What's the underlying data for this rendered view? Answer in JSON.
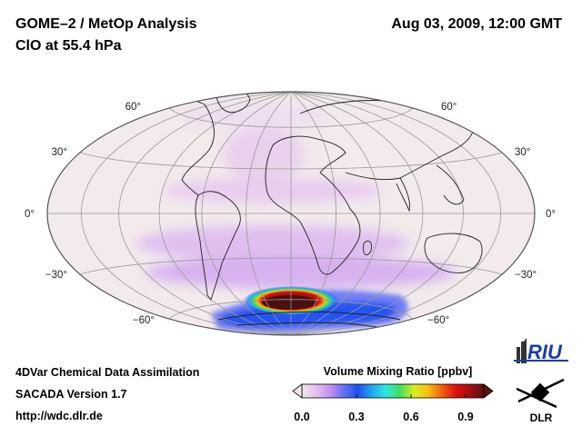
{
  "header": {
    "title": "GOME–2 / MetOp Analysis",
    "subtitle": "ClO at 55.4 hPa",
    "datetime": "Aug 03, 2009, 12:00 GMT"
  },
  "footer": {
    "line1": "4DVar Chemical Data Assimilation",
    "line2": "SACADA Version 1.7",
    "line3": "http://wdc.dlr.de"
  },
  "colorbar": {
    "title": "Volume Mixing Ratio [ppbv]",
    "ticks": [
      "0.0",
      "0.3",
      "0.6",
      "0.9"
    ],
    "range": [
      0.0,
      1.0
    ],
    "colors": [
      "#f3e8ec",
      "#e2c0ee",
      "#c493f0",
      "#6070f5",
      "#1e50f0",
      "#22a8f0",
      "#30e8e0",
      "#40e060",
      "#d8ee20",
      "#f8c010",
      "#f06010",
      "#e01010",
      "#a01010",
      "#5a1010"
    ]
  },
  "map": {
    "projection": "Hammer-Aitoff",
    "latitude_labels": [
      "60°",
      "30°",
      "0°",
      "−30°",
      "−60°"
    ]
  },
  "logos": {
    "riu": "RIU",
    "dlr": "DLR"
  }
}
